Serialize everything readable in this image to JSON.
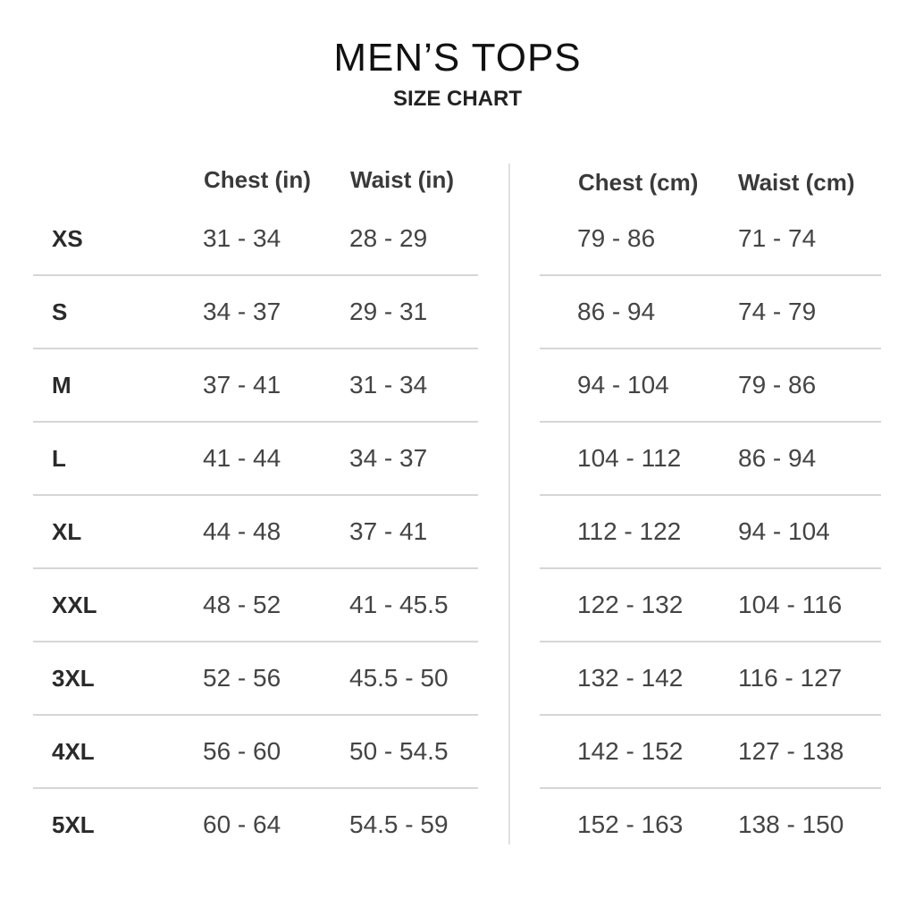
{
  "title": "MEN’S TOPS",
  "subtitle": "SIZE CHART",
  "headers": {
    "chest_in": "Chest (in)",
    "waist_in": "Waist (in)",
    "chest_cm": "Chest (cm)",
    "waist_cm": "Waist (cm)"
  },
  "rows": [
    {
      "size": "XS",
      "chest_in": "31 - 34",
      "waist_in": "28 - 29",
      "chest_cm": "79 - 86",
      "waist_cm": "71 - 74"
    },
    {
      "size": "S",
      "chest_in": "34 - 37",
      "waist_in": "29 - 31",
      "chest_cm": "86 - 94",
      "waist_cm": "74 - 79"
    },
    {
      "size": "M",
      "chest_in": "37 - 41",
      "waist_in": "31 - 34",
      "chest_cm": "94 - 104",
      "waist_cm": "79 - 86"
    },
    {
      "size": "L",
      "chest_in": "41 - 44",
      "waist_in": "34 - 37",
      "chest_cm": "104 - 112",
      "waist_cm": "86 - 94"
    },
    {
      "size": "XL",
      "chest_in": "44 - 48",
      "waist_in": "37 - 41",
      "chest_cm": "112 - 122",
      "waist_cm": "94 - 104"
    },
    {
      "size": "XXL",
      "chest_in": "48 - 52",
      "waist_in": "41 - 45.5",
      "chest_cm": "122 - 132",
      "waist_cm": "104 - 116"
    },
    {
      "size": "3XL",
      "chest_in": "52 - 56",
      "waist_in": "45.5 - 50",
      "chest_cm": "132 - 142",
      "waist_cm": "116 - 127"
    },
    {
      "size": "4XL",
      "chest_in": "56 - 60",
      "waist_in": "50 - 54.5",
      "chest_cm": "142 - 152",
      "waist_cm": "127 - 138"
    },
    {
      "size": "5XL",
      "chest_in": "60 - 64",
      "waist_in": "54.5 - 59",
      "chest_cm": "152 - 163",
      "waist_cm": "138 - 150"
    }
  ]
}
